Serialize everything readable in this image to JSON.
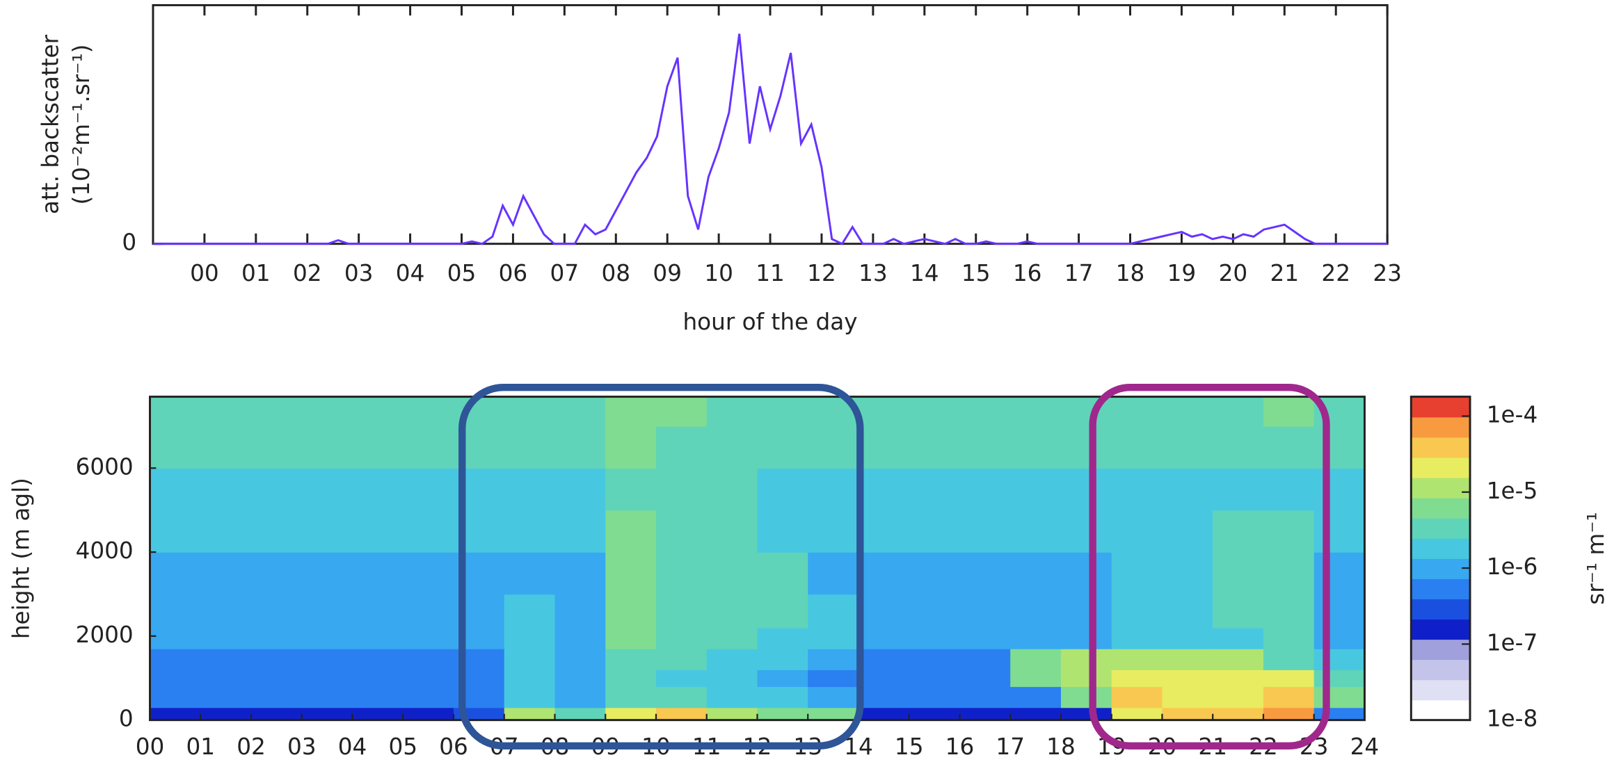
{
  "chart_data": [
    {
      "type": "line",
      "ylabel": [
        "att. backscatter",
        "(10⁻²m⁻¹.sr⁻¹)"
      ],
      "xlabel": "hour of the day",
      "x": [
        -1,
        -0.8,
        -0.6,
        -0.4,
        -0.2,
        0,
        0.2,
        0.4,
        0.6,
        0.8,
        1,
        1.2,
        1.4,
        1.6,
        1.8,
        2,
        2.2,
        2.4,
        2.6,
        2.8,
        3,
        3.2,
        3.4,
        3.6,
        3.8,
        4,
        4.2,
        4.4,
        4.6,
        4.8,
        5,
        5.2,
        5.4,
        5.6,
        5.8,
        6,
        6.2,
        6.4,
        6.6,
        6.8,
        7,
        7.2,
        7.4,
        7.6,
        7.8,
        8,
        8.2,
        8.4,
        8.6,
        8.8,
        9,
        9.2,
        9.4,
        9.6,
        9.8,
        10,
        10.2,
        10.4,
        10.6,
        10.8,
        11,
        11.2,
        11.4,
        11.6,
        11.8,
        12,
        12.2,
        12.4,
        12.6,
        12.8,
        13,
        13.2,
        13.4,
        13.6,
        13.8,
        14,
        14.2,
        14.4,
        14.6,
        14.8,
        15,
        15.2,
        15.4,
        15.6,
        15.8,
        16,
        16.2,
        16.4,
        16.6,
        16.8,
        17,
        17.2,
        17.4,
        17.6,
        17.8,
        18,
        18.2,
        18.4,
        18.6,
        18.8,
        19,
        19.2,
        19.4,
        19.6,
        19.8,
        20,
        20.2,
        20.4,
        20.6,
        20.8,
        21,
        21.2,
        21.4,
        21.6,
        21.8,
        22,
        22.2,
        22.4,
        22.6,
        22.8,
        23
      ],
      "values": [
        0,
        0,
        0,
        0,
        0,
        0,
        0,
        0,
        0,
        0,
        0,
        0,
        0,
        0,
        0,
        0,
        0,
        0,
        1.5,
        0,
        0,
        0,
        0,
        0,
        0,
        0,
        0,
        0,
        0,
        0,
        0,
        1,
        0,
        3,
        16,
        8,
        20,
        12,
        4,
        0,
        0,
        0,
        8,
        4,
        6,
        14,
        22,
        30,
        36,
        45,
        66,
        78,
        20,
        6,
        28,
        40,
        55,
        88,
        42,
        66,
        48,
        62,
        80,
        42,
        50,
        32,
        2,
        0,
        7,
        0,
        0,
        0,
        2,
        0,
        1,
        2,
        1,
        0,
        2,
        0,
        0,
        1,
        0,
        0,
        0,
        1,
        0,
        0,
        0,
        0,
        0,
        0,
        0,
        0,
        0,
        0,
        1,
        2,
        3,
        4,
        5,
        3,
        4,
        2,
        3,
        2,
        4,
        3,
        6,
        7,
        8,
        5,
        2,
        0,
        0,
        0,
        0,
        0,
        0,
        0,
        0
      ],
      "color": "#6633ff",
      "xlim": [
        -1,
        23
      ],
      "ylim": [
        0,
        100
      ],
      "yticks": [
        0
      ],
      "xticks": [
        {
          "value": 0,
          "label": "00"
        },
        {
          "value": 1,
          "label": "01"
        },
        {
          "value": 2,
          "label": "02"
        },
        {
          "value": 3,
          "label": "03"
        },
        {
          "value": 4,
          "label": "04"
        },
        {
          "value": 5,
          "label": "05"
        },
        {
          "value": 6,
          "label": "06"
        },
        {
          "value": 7,
          "label": "07"
        },
        {
          "value": 8,
          "label": "08"
        },
        {
          "value": 9,
          "label": "09"
        },
        10,
        11,
        12,
        13,
        14,
        15,
        16,
        17,
        18,
        19,
        20,
        21,
        22,
        23
      ]
    },
    {
      "type": "heatmap",
      "ylabel": "height (m agl)",
      "x_bins": [
        0,
        1,
        2,
        3,
        4,
        5,
        6,
        7,
        8,
        9,
        10,
        11,
        12,
        13,
        14,
        15,
        16,
        17,
        18,
        19,
        20,
        21,
        22,
        23,
        24
      ],
      "y_bins": [
        0,
        300,
        800,
        1200,
        1700,
        2200,
        3000,
        4000,
        5000,
        6000,
        7000,
        7700
      ],
      "z": [
        [
          2e-07,
          2e-07,
          2e-07,
          2e-07,
          2e-07,
          2e-07,
          3e-07,
          1e-05,
          4e-06,
          2e-05,
          3e-05,
          1e-05,
          8e-06,
          6e-06,
          2e-07,
          2e-07,
          2e-07,
          2e-07,
          2e-07,
          2e-05,
          3e-05,
          4e-05,
          6e-05,
          4e-07
        ],
        [
          5e-07,
          5e-07,
          5e-07,
          5e-07,
          5e-07,
          5e-07,
          5e-07,
          2e-06,
          1e-06,
          4e-06,
          3e-06,
          1.5e-06,
          1.5e-06,
          1e-06,
          5e-07,
          5e-07,
          5e-07,
          5e-07,
          6e-06,
          3e-05,
          2.5e-05,
          2.5e-05,
          3e-05,
          8e-06
        ],
        [
          5e-07,
          5e-07,
          5e-07,
          5e-07,
          5e-07,
          5e-07,
          5e-07,
          1.5e-06,
          1.2e-06,
          3e-06,
          2e-06,
          1.5e-06,
          1.2e-06,
          5e-07,
          5e-07,
          5e-07,
          5e-07,
          5e-06,
          1e-05,
          2.5e-05,
          2e-05,
          1.8e-05,
          2e-05,
          3e-06
        ],
        [
          7e-07,
          7e-07,
          7e-07,
          7e-07,
          7e-07,
          7e-07,
          7e-07,
          1.5e-06,
          1.2e-06,
          4e-06,
          3e-06,
          2e-06,
          2e-06,
          1.2e-06,
          7e-07,
          7e-07,
          7e-07,
          8e-06,
          1.2e-05,
          1.5e-05,
          1.2e-05,
          1e-05,
          3e-06,
          2e-06
        ],
        [
          8e-07,
          8e-07,
          8e-07,
          8e-07,
          8e-07,
          8e-07,
          8e-07,
          1.5e-06,
          1.2e-06,
          5e-06,
          3e-06,
          2.5e-06,
          2e-06,
          1.5e-06,
          8e-07,
          8e-07,
          8e-07,
          8e-07,
          1.2e-06,
          1.5e-06,
          1.5e-06,
          2e-06,
          3e-06,
          8e-07
        ],
        [
          1e-06,
          1e-06,
          1e-06,
          1e-06,
          1e-06,
          1e-06,
          1e-06,
          1.5e-06,
          1.2e-06,
          5e-06,
          4e-06,
          3e-06,
          2.5e-06,
          1.5e-06,
          1e-06,
          1e-06,
          1e-06,
          1e-06,
          1e-06,
          1.8e-06,
          2e-06,
          3e-06,
          4e-06,
          1e-06
        ],
        [
          1.3e-06,
          1.3e-06,
          1.3e-06,
          1.3e-06,
          1.3e-06,
          1.3e-06,
          1.3e-06,
          1.3e-06,
          1.2e-06,
          6e-06,
          4e-06,
          2.5e-06,
          2.5e-06,
          1.3e-06,
          1.3e-06,
          1.3e-06,
          1.3e-06,
          1.3e-06,
          1.3e-06,
          2e-06,
          2e-06,
          4e-06,
          4e-06,
          1.3e-06
        ],
        [
          1.6e-06,
          1.6e-06,
          1.6e-06,
          1.6e-06,
          1.6e-06,
          1.6e-06,
          1.6e-06,
          1.6e-06,
          1.6e-06,
          5e-06,
          3e-06,
          2.5e-06,
          2e-06,
          1.6e-06,
          1.6e-06,
          1.6e-06,
          1.6e-06,
          1.6e-06,
          1.6e-06,
          1.6e-06,
          1.6e-06,
          3e-06,
          3e-06,
          1.6e-06
        ],
        [
          2e-06,
          2e-06,
          2e-06,
          2e-06,
          2e-06,
          2e-06,
          2e-06,
          2e-06,
          2e-06,
          4e-06,
          3e-06,
          2.5e-06,
          2.2e-06,
          2e-06,
          2e-06,
          2e-06,
          2e-06,
          2e-06,
          2e-06,
          2e-06,
          2e-06,
          2e-06,
          2e-06,
          2e-06
        ],
        [
          2.5e-06,
          2.5e-06,
          2.5e-06,
          2.5e-06,
          2.5e-06,
          2.5e-06,
          2.5e-06,
          2.5e-06,
          2.5e-06,
          5e-06,
          4e-06,
          3e-06,
          2.8e-06,
          2.5e-06,
          2.5e-06,
          2.5e-06,
          2.5e-06,
          2.5e-06,
          2.5e-06,
          2.5e-06,
          2.5e-06,
          2.5e-06,
          2.5e-06,
          2.5e-06
        ],
        [
          3e-06,
          3e-06,
          3e-06,
          3e-06,
          3e-06,
          3e-06,
          3e-06,
          3e-06,
          3e-06,
          8e-06,
          6e-06,
          3.5e-06,
          3e-06,
          3e-06,
          3e-06,
          3e-06,
          3e-06,
          3e-06,
          3e-06,
          3e-06,
          3e-06,
          3e-06,
          8e-06,
          3e-06
        ]
      ],
      "xlim": [
        0,
        24
      ],
      "ylim": [
        0,
        7700
      ],
      "yticks": [
        0,
        2000,
        4000,
        6000
      ],
      "xticks": [
        {
          "value": 0,
          "label": "00"
        },
        {
          "value": 1,
          "label": "01"
        },
        {
          "value": 2,
          "label": "02"
        },
        {
          "value": 3,
          "label": "03"
        },
        {
          "value": 4,
          "label": "04"
        },
        {
          "value": 5,
          "label": "05"
        },
        {
          "value": 6,
          "label": "06"
        },
        {
          "value": 7,
          "label": "07"
        },
        {
          "value": 8,
          "label": "08"
        },
        {
          "value": 9,
          "label": "09"
        },
        10,
        11,
        12,
        13,
        14,
        15,
        16,
        17,
        18,
        19,
        20,
        21,
        22,
        23,
        24
      ],
      "colorbar": {
        "label": "sr⁻¹ m⁻¹",
        "log": true,
        "lim": [
          1e-08,
          0.00018
        ],
        "ticks": [
          {
            "value": 0.0001,
            "label": "1e-4"
          },
          {
            "value": 1e-05,
            "label": "1e-5"
          },
          {
            "value": 1e-06,
            "label": "1e-6"
          },
          {
            "value": 1e-07,
            "label": "1e-7"
          },
          {
            "value": 1e-08,
            "label": "1e-8"
          }
        ],
        "colors": [
          "#ffffff",
          "#e0e0f4",
          "#c4c4ea",
          "#a0a0dc",
          "#1020c8",
          "#1a50e0",
          "#2a80f0",
          "#38a8f0",
          "#48c8e0",
          "#60d4b8",
          "#80dc90",
          "#b0e470",
          "#e8ec60",
          "#f8c850",
          "#f89a40",
          "#e84030"
        ]
      }
    }
  ]
}
